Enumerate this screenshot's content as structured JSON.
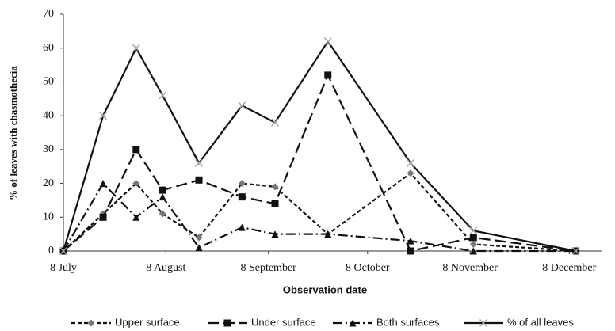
{
  "chart_data": {
    "type": "line",
    "y_label": "% of leaves  with chasmothecia",
    "x_label": "Observation date",
    "x": [
      0,
      12,
      22,
      30,
      41,
      54,
      64,
      80,
      105,
      124,
      155
    ],
    "xlim": [
      0,
      163
    ],
    "xticks": [
      {
        "value": 0,
        "label": "8 July"
      },
      {
        "value": 31,
        "label": "8 August"
      },
      {
        "value": 62,
        "label": "8 September"
      },
      {
        "value": 92,
        "label": "8 October"
      },
      {
        "value": 123,
        "label": "8 November"
      },
      {
        "value": 153,
        "label": "8 December"
      }
    ],
    "ylim": [
      0,
      70
    ],
    "yticks": [
      0,
      10,
      20,
      30,
      40,
      50,
      60,
      70
    ],
    "series": [
      {
        "name": "Upper surface",
        "color": "#111111",
        "marker_color": "#777777",
        "marker": "diamond",
        "dash": "5 3",
        "values": [
          0,
          11,
          20,
          11,
          4,
          20,
          19,
          5,
          23,
          2,
          0
        ]
      },
      {
        "name": "Under surface",
        "color": "#111111",
        "marker_color": "#111111",
        "marker": "square",
        "dash": "14 6",
        "values": [
          0,
          10,
          30,
          18,
          21,
          16,
          14,
          52,
          0,
          4,
          0
        ]
      },
      {
        "name": "Both surfaces",
        "color": "#111111",
        "marker_color": "#111111",
        "marker": "triangle",
        "dash": "12 4 2 4",
        "values": [
          0,
          20,
          10,
          16,
          1,
          7,
          5,
          5,
          3,
          0,
          0
        ]
      },
      {
        "name": "% of all leaves",
        "color": "#111111",
        "marker_color": "#aaaaaa",
        "marker": "cross",
        "dash": "none",
        "values": [
          0,
          40,
          60,
          46,
          26,
          43,
          38,
          62,
          26,
          6,
          0
        ]
      }
    ]
  }
}
